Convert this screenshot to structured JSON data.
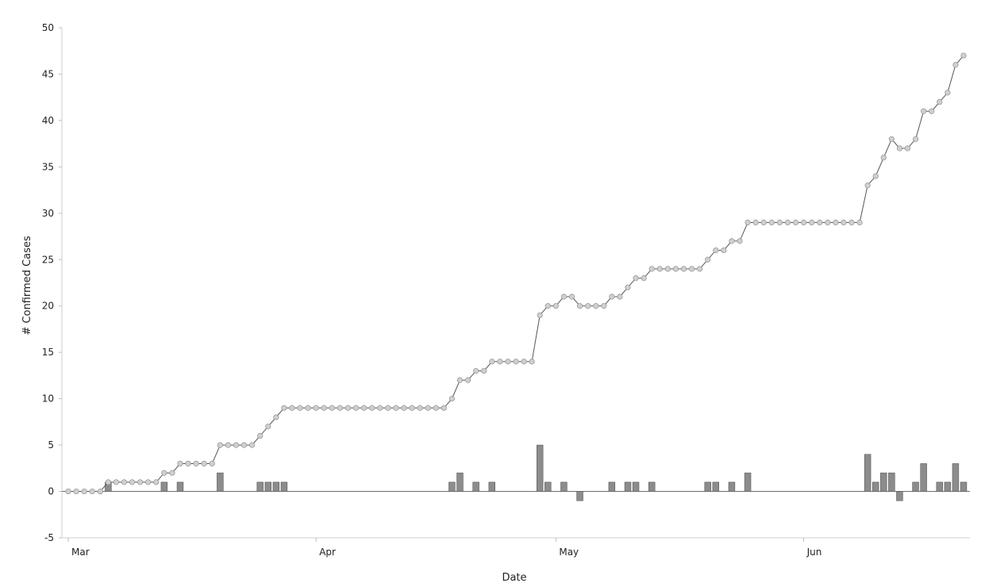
{
  "chart_data": {
    "type": "bar",
    "xlabel": "Date",
    "ylabel": "# Confirmed Cases",
    "ylim": [
      -5,
      50
    ],
    "yticks": [
      -5,
      0,
      5,
      10,
      15,
      20,
      25,
      30,
      35,
      40,
      45,
      50
    ],
    "x_start": "2020-03-01",
    "x_end": "2020-06-21",
    "xticks": [
      {
        "date": "2020-03-01",
        "label": "Mar"
      },
      {
        "date": "2020-04-01",
        "label": "Apr"
      },
      {
        "date": "2020-05-01",
        "label": "May"
      },
      {
        "date": "2020-06-01",
        "label": "Jun"
      }
    ],
    "grid": false,
    "legend": "none",
    "dates": [
      "2020-03-01",
      "2020-03-02",
      "2020-03-03",
      "2020-03-04",
      "2020-03-05",
      "2020-03-06",
      "2020-03-07",
      "2020-03-08",
      "2020-03-09",
      "2020-03-10",
      "2020-03-11",
      "2020-03-12",
      "2020-03-13",
      "2020-03-14",
      "2020-03-15",
      "2020-03-16",
      "2020-03-17",
      "2020-03-18",
      "2020-03-19",
      "2020-03-20",
      "2020-03-21",
      "2020-03-22",
      "2020-03-23",
      "2020-03-24",
      "2020-03-25",
      "2020-03-26",
      "2020-03-27",
      "2020-03-28",
      "2020-03-29",
      "2020-03-30",
      "2020-03-31",
      "2020-04-01",
      "2020-04-02",
      "2020-04-03",
      "2020-04-04",
      "2020-04-05",
      "2020-04-06",
      "2020-04-07",
      "2020-04-08",
      "2020-04-09",
      "2020-04-10",
      "2020-04-11",
      "2020-04-12",
      "2020-04-13",
      "2020-04-14",
      "2020-04-15",
      "2020-04-16",
      "2020-04-17",
      "2020-04-18",
      "2020-04-19",
      "2020-04-20",
      "2020-04-21",
      "2020-04-22",
      "2020-04-23",
      "2020-04-24",
      "2020-04-25",
      "2020-04-26",
      "2020-04-27",
      "2020-04-28",
      "2020-04-29",
      "2020-04-30",
      "2020-05-01",
      "2020-05-02",
      "2020-05-03",
      "2020-05-04",
      "2020-05-05",
      "2020-05-06",
      "2020-05-07",
      "2020-05-08",
      "2020-05-09",
      "2020-05-10",
      "2020-05-11",
      "2020-05-12",
      "2020-05-13",
      "2020-05-14",
      "2020-05-15",
      "2020-05-16",
      "2020-05-17",
      "2020-05-18",
      "2020-05-19",
      "2020-05-20",
      "2020-05-21",
      "2020-05-22",
      "2020-05-23",
      "2020-05-24",
      "2020-05-25",
      "2020-05-26",
      "2020-05-27",
      "2020-05-28",
      "2020-05-29",
      "2020-05-30",
      "2020-05-31",
      "2020-06-01",
      "2020-06-02",
      "2020-06-03",
      "2020-06-04",
      "2020-06-05",
      "2020-06-06",
      "2020-06-07",
      "2020-06-08",
      "2020-06-09",
      "2020-06-10",
      "2020-06-11",
      "2020-06-12",
      "2020-06-13",
      "2020-06-14",
      "2020-06-15",
      "2020-06-16",
      "2020-06-17",
      "2020-06-18",
      "2020-06-19",
      "2020-06-20",
      "2020-06-21"
    ],
    "series": [
      {
        "type": "line",
        "color": "#555555",
        "marker_color": "#d0d0d0",
        "values": [
          0,
          0,
          0,
          0,
          0,
          1,
          1,
          1,
          1,
          1,
          1,
          1,
          2,
          2,
          3,
          3,
          3,
          3,
          3,
          5,
          5,
          5,
          5,
          5,
          6,
          7,
          8,
          9,
          9,
          9,
          9,
          9,
          9,
          9,
          9,
          9,
          9,
          9,
          9,
          9,
          9,
          9,
          9,
          9,
          9,
          9,
          9,
          9,
          10,
          12,
          12,
          13,
          13,
          14,
          14,
          14,
          14,
          14,
          14,
          19,
          20,
          20,
          21,
          21,
          20,
          20,
          20,
          20,
          21,
          21,
          22,
          23,
          23,
          24,
          24,
          24,
          24,
          24,
          24,
          24,
          25,
          26,
          26,
          27,
          27,
          29,
          29,
          29,
          29,
          29,
          29,
          29,
          29,
          29,
          29,
          29,
          29,
          29,
          29,
          29,
          33,
          34,
          36,
          38,
          37,
          37,
          38,
          41,
          41,
          42,
          43,
          46,
          47
        ]
      },
      {
        "type": "bar",
        "color": "#8c8c8c",
        "values": [
          0,
          0,
          0,
          0,
          0,
          1,
          0,
          0,
          0,
          0,
          0,
          0,
          1,
          0,
          1,
          0,
          0,
          0,
          0,
          2,
          0,
          0,
          0,
          0,
          1,
          1,
          1,
          1,
          0,
          0,
          0,
          0,
          0,
          0,
          0,
          0,
          0,
          0,
          0,
          0,
          0,
          0,
          0,
          0,
          0,
          0,
          0,
          0,
          1,
          2,
          0,
          1,
          0,
          1,
          0,
          0,
          0,
          0,
          0,
          5,
          1,
          0,
          1,
          0,
          -1,
          0,
          0,
          0,
          1,
          0,
          1,
          1,
          0,
          1,
          0,
          0,
          0,
          0,
          0,
          0,
          1,
          1,
          0,
          1,
          0,
          2,
          0,
          0,
          0,
          0,
          0,
          0,
          0,
          0,
          0,
          0,
          0,
          0,
          0,
          0,
          4,
          1,
          2,
          2,
          -1,
          0,
          1,
          3,
          0,
          1,
          1,
          3,
          1
        ]
      }
    ]
  }
}
